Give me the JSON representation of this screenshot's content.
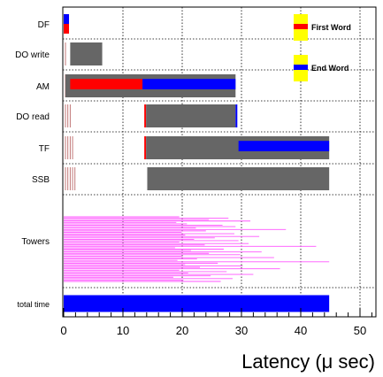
{
  "chart_data": {
    "type": "bar",
    "xlabel": "Latency (μ sec)",
    "xlim": [
      0,
      53
    ],
    "xticks": [
      "0",
      "10",
      "20",
      "30",
      "40",
      "50"
    ],
    "grid": true,
    "categories": [
      "DF",
      "DO write",
      "AM",
      "DO read",
      "TF",
      "SSB",
      "Towers",
      "total time"
    ],
    "legend": {
      "placement": "top-right",
      "entries": [
        {
          "label": "First Word",
          "color": "#ff0000",
          "box_color": "#ffff00"
        },
        {
          "label": "End   Word",
          "color": "#0000ff",
          "box_color": "#ffff00"
        }
      ]
    },
    "colors": {
      "processing": "#666666",
      "first_word": "#ff0000",
      "end_word": "#0000ff",
      "towers": "#ff55ff",
      "small_ticks": "#bb6a6a"
    },
    "stages": [
      {
        "name": "DF",
        "bars": [
          {
            "kind": "end_word",
            "start": 0.0,
            "end": 0.9,
            "part": "top"
          },
          {
            "kind": "first_word",
            "start": 0.0,
            "end": 0.9,
            "part": "bottom"
          }
        ],
        "ticks": []
      },
      {
        "name": "DO write",
        "bars": [
          {
            "kind": "processing",
            "start": 1.1,
            "end": 6.5,
            "part": "full"
          }
        ],
        "ticks": [
          0.3
        ]
      },
      {
        "name": "AM",
        "bars": [
          {
            "kind": "processing",
            "start": 0.3,
            "end": 29.0,
            "part": "full"
          },
          {
            "kind": "first_word",
            "start": 1.1,
            "end": 13.3,
            "part": "center"
          },
          {
            "kind": "end_word",
            "start": 13.3,
            "end": 29.0,
            "part": "center"
          }
        ],
        "ticks": [
          0.3,
          0.7
        ]
      },
      {
        "name": "DO read",
        "bars": [
          {
            "kind": "first_word",
            "start": 13.6,
            "end": 13.9,
            "part": "full"
          },
          {
            "kind": "processing",
            "start": 13.9,
            "end": 29.0,
            "part": "full"
          },
          {
            "kind": "end_word",
            "start": 29.0,
            "end": 29.3,
            "part": "full"
          }
        ],
        "ticks": [
          0.3,
          0.7,
          1.1
        ]
      },
      {
        "name": "TF",
        "bars": [
          {
            "kind": "first_word",
            "start": 13.6,
            "end": 13.9,
            "part": "full"
          },
          {
            "kind": "processing",
            "start": 13.9,
            "end": 44.8,
            "part": "full"
          },
          {
            "kind": "end_word",
            "start": 29.5,
            "end": 44.8,
            "part": "center"
          }
        ],
        "ticks": [
          0.3,
          0.7,
          1.1,
          1.5
        ]
      },
      {
        "name": "SSB",
        "bars": [
          {
            "kind": "processing",
            "start": 14.1,
            "end": 44.8,
            "part": "full"
          }
        ],
        "ticks": [
          0.3,
          0.7,
          1.1,
          1.5,
          1.9
        ]
      },
      {
        "name": "total time",
        "bars": [
          {
            "kind": "end_word",
            "start": 0.0,
            "end": 44.8,
            "part": "full"
          }
        ],
        "ticks": []
      }
    ],
    "towers": [
      19.5,
      27.8,
      24.5,
      31.5,
      19.0,
      20.8,
      26.8,
      29.0,
      22.3,
      37.5,
      24.0,
      19.9,
      28.8,
      20.5,
      33.0,
      25.5,
      22.0,
      29.5,
      19.5,
      31.2,
      23.8,
      42.6,
      18.8,
      27.0,
      21.5,
      33.4,
      24.5,
      29.8,
      20.0,
      35.5,
      22.5,
      19.2,
      44.8,
      26.0,
      20.5,
      30.2,
      23.0,
      36.5,
      19.5,
      27.5,
      21.0,
      32.0,
      24.8,
      18.5,
      28.5,
      20.2,
      26.5
    ]
  }
}
